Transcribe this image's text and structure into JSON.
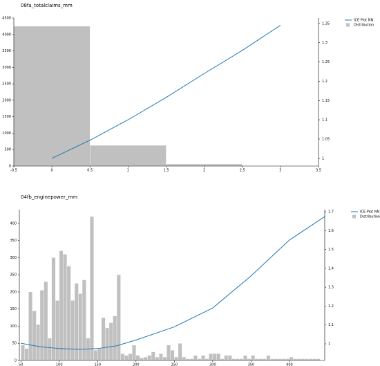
{
  "chart_data": [
    {
      "type": "histogram",
      "title": "08fa_totalclaims_mm",
      "legend": "upper right",
      "xlim": [
        -0.5,
        3.5
      ],
      "xticks": [
        -0.5,
        0,
        0.5,
        1,
        1.5,
        2,
        2.5,
        3,
        3.5
      ],
      "ylim": [
        0,
        4500
      ],
      "yticks": [
        0,
        500,
        1000,
        1500,
        2000,
        2500,
        3000,
        3500,
        4000,
        4500
      ],
      "y2lim": [
        0.98,
        1.364
      ],
      "y2ticks": [
        1,
        1.05,
        1.1,
        1.15,
        1.2,
        1.25,
        1.3,
        1.35
      ],
      "series": [
        {
          "name": "ICE Plot NN",
          "type": "line",
          "axis": "y2",
          "color": "#1f77b4",
          "x": [
            0,
            0.5,
            1,
            1.5,
            2,
            2.5,
            3
          ],
          "values": [
            1.0,
            1.047,
            1.1,
            1.158,
            1.22,
            1.28,
            1.345
          ]
        },
        {
          "name": "Distribution",
          "type": "histogram",
          "color": "#c0c0c0",
          "bins": [
            -0.5,
            0.5,
            1.5,
            2.5
          ],
          "values": [
            4250,
            630,
            63
          ]
        }
      ]
    },
    {
      "type": "histogram",
      "title": "04fb_enginepower_mm",
      "legend": "upper right",
      "xlim": [
        48,
        446
      ],
      "xticks": [
        50,
        100,
        150,
        200,
        250,
        300,
        350,
        400
      ],
      "ylim": [
        0,
        440
      ],
      "yticks": [
        0,
        50,
        100,
        150,
        200,
        250,
        300,
        350,
        400
      ],
      "y2lim": [
        0.912,
        1.711
      ],
      "y2ticks": [
        1,
        1.1,
        1.2,
        1.3,
        1.4,
        1.5,
        1.6,
        1.7
      ],
      "series": [
        {
          "name": "ICE Plot NN",
          "type": "line",
          "axis": "y2",
          "color": "#1f77b4",
          "x": [
            50,
            75,
            100,
            125,
            150,
            175,
            200,
            250,
            300,
            350,
            400,
            446
          ],
          "values": [
            1.003,
            0.985,
            0.975,
            0.971,
            0.975,
            0.99,
            1.02,
            1.09,
            1.19,
            1.36,
            1.55,
            1.674
          ]
        },
        {
          "name": "Distribution",
          "type": "histogram",
          "color": "#c0c0c0",
          "bins": [
            50,
            55,
            60,
            65,
            70,
            75,
            80,
            85,
            90,
            95,
            100,
            105,
            110,
            115,
            120,
            125,
            130,
            135,
            140,
            145,
            150,
            155,
            160,
            165,
            170,
            175,
            180,
            185,
            190,
            195,
            200,
            205,
            210,
            215,
            220,
            225,
            230,
            235,
            240,
            245,
            250,
            255,
            260,
            265,
            270,
            275,
            280,
            285,
            290,
            295,
            300,
            305,
            310,
            315,
            320,
            325,
            330,
            335,
            340,
            345,
            350,
            355,
            360,
            365,
            370,
            375,
            380,
            385,
            390,
            395,
            400,
            405,
            410,
            415,
            420,
            425,
            430,
            435,
            440
          ],
          "values": [
            45,
            35,
            200,
            145,
            105,
            205,
            230,
            65,
            300,
            175,
            320,
            310,
            275,
            175,
            225,
            195,
            235,
            65,
            420,
            30,
            35,
            125,
            95,
            110,
            130,
            250,
            20,
            15,
            20,
            45,
            15,
            8,
            10,
            15,
            25,
            10,
            20,
            10,
            45,
            30,
            10,
            50,
            10,
            5,
            5,
            15,
            5,
            15,
            5,
            20,
            20,
            20,
            5,
            15,
            15,
            5,
            5,
            5,
            15,
            5,
            15,
            5,
            5,
            5,
            15,
            5,
            5,
            5,
            5,
            5,
            10,
            5,
            5,
            5,
            5,
            5,
            5,
            5
          ]
        }
      ]
    }
  ]
}
